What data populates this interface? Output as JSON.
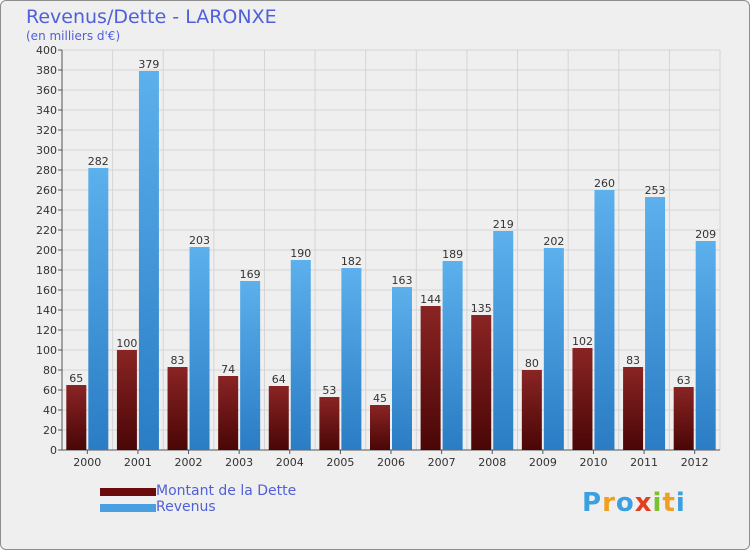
{
  "header": {
    "title": "Revenus/Dette - LARONXE",
    "subtitle": "(en milliers d'€)"
  },
  "chart_data": {
    "type": "bar",
    "title": "Revenus/Dette - LARONXE",
    "ylabel": "(en milliers d'€)",
    "xlabel": "",
    "ylim": [
      0,
      400
    ],
    "ytick_step": 20,
    "grid": true,
    "categories": [
      "2000",
      "2001",
      "2002",
      "2003",
      "2004",
      "2005",
      "2006",
      "2007",
      "2008",
      "2009",
      "2010",
      "2011",
      "2012"
    ],
    "series": [
      {
        "name": "Montant de la Dette",
        "color": "#7a1414",
        "values": [
          65,
          100,
          83,
          74,
          64,
          53,
          45,
          144,
          135,
          80,
          102,
          83,
          63
        ]
      },
      {
        "name": "Revenus",
        "color": "#4a9fe0",
        "values": [
          282,
          379,
          203,
          169,
          190,
          182,
          163,
          189,
          219,
          202,
          260,
          253,
          209
        ]
      }
    ],
    "legend_position": "bottom-left"
  },
  "legend": {
    "items": [
      {
        "label": "Montant de la Dette",
        "color": "#6b0a0a"
      },
      {
        "label": "Revenus",
        "color": "#4a9fe0"
      }
    ]
  },
  "logo": {
    "letters": [
      {
        "char": "P",
        "color": "#3aa0e0"
      },
      {
        "char": "r",
        "color": "#f0a020"
      },
      {
        "char": "o",
        "color": "#3aa0e0"
      },
      {
        "char": "x",
        "color": "#e04020"
      },
      {
        "char": "i",
        "color": "#7cc030"
      },
      {
        "char": "t",
        "color": "#f0a020"
      },
      {
        "char": "i",
        "color": "#3aa0e0"
      }
    ]
  }
}
